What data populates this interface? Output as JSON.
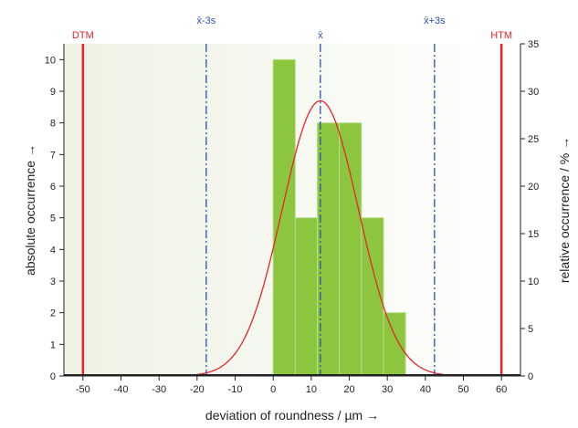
{
  "chart_data": {
    "type": "bar",
    "title": "",
    "xlabel": "deviation of roundness / µm →",
    "ylabel": "absolute occurrence →",
    "ylabel_right": "relative occurrence  / % →",
    "xlim": [
      -55,
      65
    ],
    "ylim": [
      0,
      10.5
    ],
    "ylim_right": [
      0,
      35
    ],
    "x_ticks": [
      -50,
      -40,
      -30,
      -20,
      -10,
      0,
      10,
      20,
      30,
      40,
      50,
      60
    ],
    "y_ticks": [
      0,
      1,
      2,
      3,
      4,
      5,
      6,
      7,
      8,
      9,
      10
    ],
    "y_right_ticks": [
      0,
      5,
      10,
      15,
      20,
      25,
      30,
      35
    ],
    "bin_width": 5.8,
    "bins": [
      {
        "x": 0,
        "value": 10
      },
      {
        "x": 5.8,
        "value": 5
      },
      {
        "x": 11.6,
        "value": 8
      },
      {
        "x": 17.4,
        "value": 8
      },
      {
        "x": 23.2,
        "value": 5
      },
      {
        "x": 29.0,
        "value": 2
      }
    ],
    "normal_curve": {
      "mean": 12.4,
      "std": 10,
      "peak": 8.7
    },
    "limits": [
      {
        "name": "DTM",
        "x": -50
      },
      {
        "name": "HTM",
        "x": 60
      }
    ],
    "stat_lines": [
      {
        "name": "x̄-3s",
        "x": -17.6
      },
      {
        "name": "x̄",
        "x": 12.4
      },
      {
        "name": "x̄+3s",
        "x": 42.4
      }
    ],
    "grid": false,
    "colors": {
      "bar": "#8cc63f",
      "bar_stroke": "#b8df8a",
      "curve": "#e8252a",
      "limit": "#e8252a",
      "stat": "#2b4fb5",
      "plot_bg_left": "#eef2e4",
      "plot_bg_right": "#ffffff"
    }
  }
}
